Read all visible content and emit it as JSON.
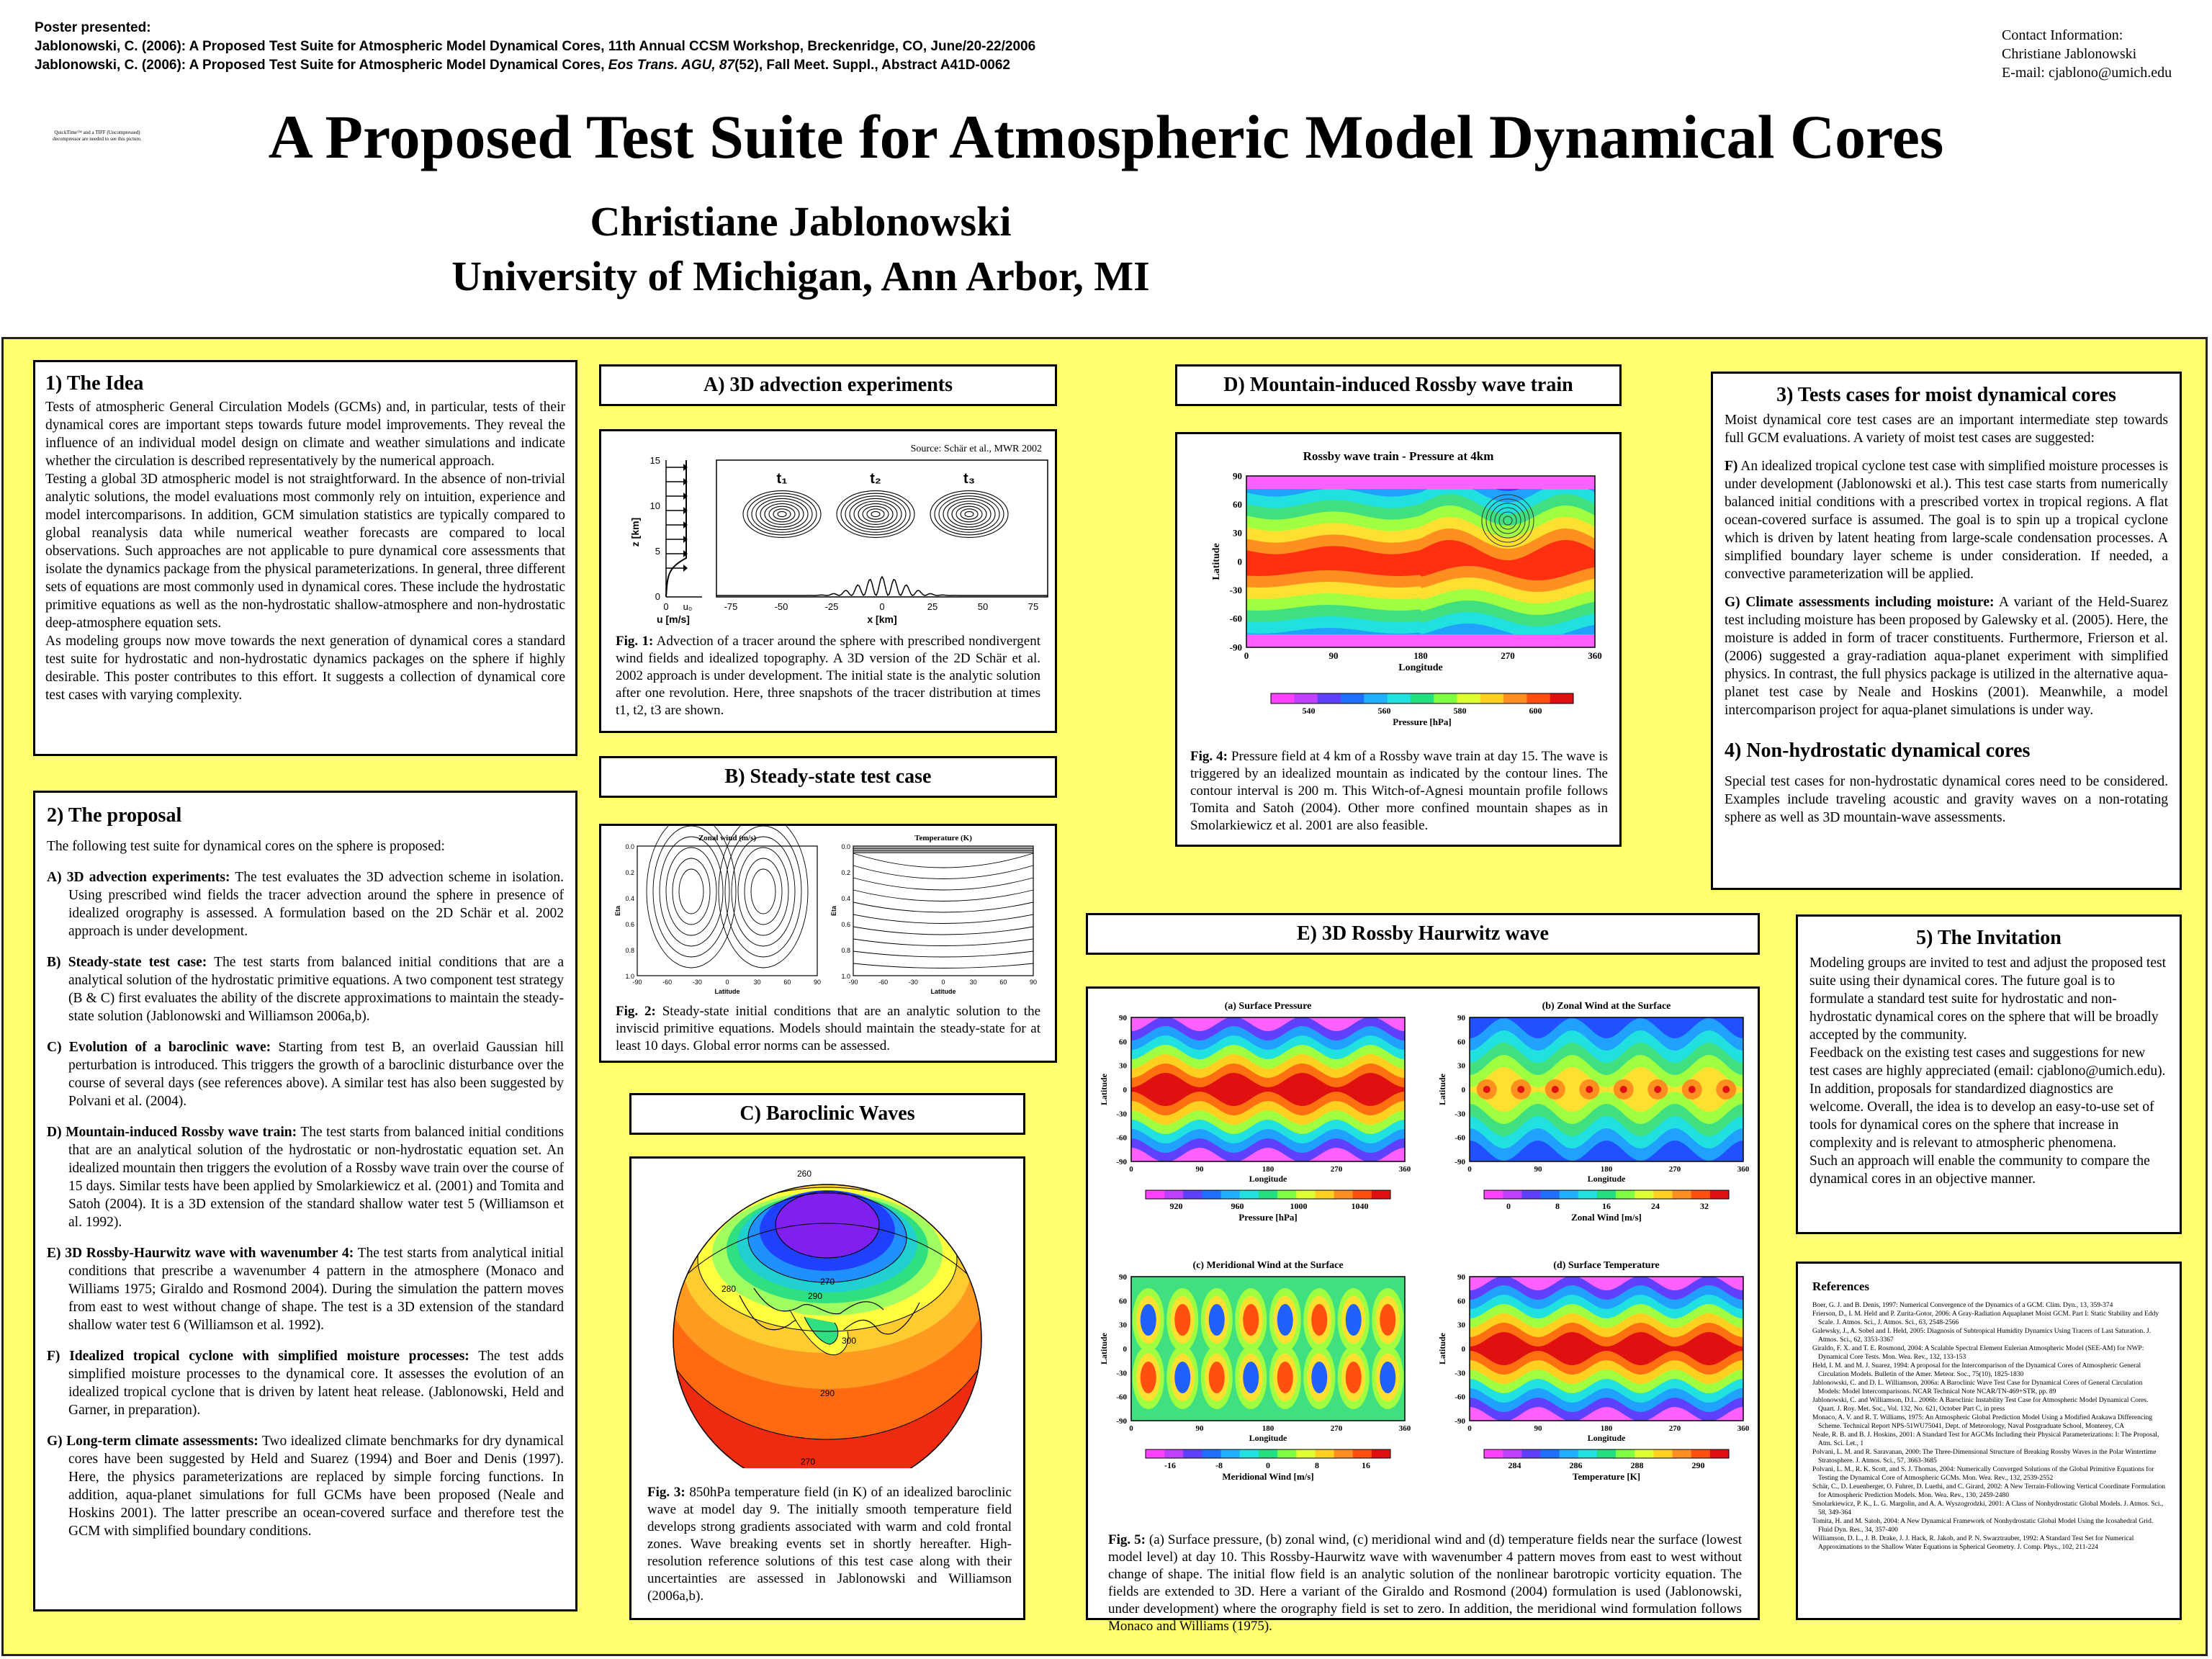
{
  "header": {
    "poster_presented": "Poster presented:",
    "citation1": "Jablonowski, C. (2006): A Proposed Test Suite for Atmospheric Model Dynamical Cores, 11th Annual CCSM Workshop, Breckenridge, CO, June/20-22/2006",
    "citation2_a": "Jablonowski, C. (2006): A Proposed Test Suite for Atmospheric Model Dynamical Cores, ",
    "citation2_b": "Eos Trans. AGU, 87",
    "citation2_c": "(52), Fall Meet. Suppl., Abstract A41D-0062",
    "contact_label": "Contact Information:",
    "contact_name": "Christiane Jablonowski",
    "contact_email": "E-mail: cjablono@umich.edu",
    "title": "A Proposed Test Suite for Atmospheric Model Dynamical Cores",
    "author": "Christiane  Jablonowski",
    "affiliation": "University of Michigan, Ann Arbor, MI"
  },
  "logo_text": "QuickTime™ and a TIFF (Uncompressed) decompressor are needed to see this picture.",
  "idea": {
    "title": "1) The Idea",
    "body": "Tests of atmospheric General Circulation Models (GCMs) and, in particular, tests of their dynamical cores are important steps towards future model improvements. They reveal the influence of an individual model design on climate and weather simulations and indicate whether the circulation is described representatively by the numerical approach.",
    "body2": "Testing a global 3D atmospheric model is not straightforward. In the absence of non-trivial analytic solutions, the model evaluations most commonly rely on intuition, experience and model intercomparisons. In addition, GCM simulation statistics are typically compared to global reanalysis data while numerical weather forecasts are compared to local observations. Such approaches are not applicable to pure dynamical core assessments that isolate the dynamics package from the physical parameterizations. In general, three different sets of equations are most commonly used in dynamical cores. These include the hydrostatic primitive equations as well as the non-hydrostatic shallow-atmosphere and non-hydrostatic deep-atmosphere equation sets.",
    "body3": "As modeling groups now move towards the next generation of dynamical cores a standard test suite for hydrostatic and non-hydrostatic dynamics packages on the sphere if highly desirable. This poster contributes to this effort. It suggests a collection of dynamical core test cases with varying complexity."
  },
  "proposal": {
    "title": "2)  The proposal",
    "intro": "The following test suite for dynamical cores on the sphere is proposed:",
    "items": [
      {
        "label": "A)  3D advection experiments:",
        "text": " The test evaluates the 3D advection scheme in isolation. Using prescribed wind fields the tracer advection around the sphere in presence of idealized orography is assessed. A formulation based on the 2D Schär et al. 2002 approach is under development."
      },
      {
        "label": "B)  Steady-state test case:",
        "text": " The test starts from balanced initial conditions that are a analytical solution of the hydrostatic primitive equations. A two component test strategy (B & C) first evaluates the ability of the discrete approximations to maintain the steady-state solution (Jablonowski and Williamson 2006a,b)."
      },
      {
        "label": "C)  Evolution of a baroclinic wave:",
        "text": " Starting from test B, an overlaid Gaussian hill perturbation is introduced. This triggers the growth of a baroclinic disturbance over the course of several days (see references  above). A similar test has also been suggested by Polvani et al. (2004)."
      },
      {
        "label": "D)  Mountain-induced Rossby wave train:",
        "text": " The test starts from balanced initial conditions that are an analytical solution of the hydrostatic or non-hydrostatic equation set. An idealized mountain then triggers  the evolution of a Rossby wave train over the course of 15 days. Similar tests have been applied by Smolarkiewicz et al. (2001) and Tomita and Satoh (2004). It is a 3D extension of the standard shallow water test 5 (Williamson et al. 1992)."
      },
      {
        "label": "E)  3D Rossby-Haurwitz wave with wavenumber 4:",
        "text": " The test starts from analytical initial conditions that prescribe a wavenumber 4 pattern in the atmosphere (Monaco and Williams 1975; Giraldo and Rosmond 2004). During the simulation the pattern moves from east to west without change of shape. The test is a 3D extension of the standard shallow water test 6 (Williamson et al. 1992)."
      },
      {
        "label": "F)  Idealized tropical cyclone with simplified moisture processes:",
        "text": " The test adds simplified moisture processes to the dynamical core. It assesses the evolution of an idealized tropical cyclone that is driven by latent heat release. (Jablonowski, Held and Garner, in preparation)."
      },
      {
        "label": "G)  Long-term climate assessments:",
        "text": "  Two idealized climate benchmarks for dry dynamical cores have been suggested by Held and Suarez (1994) and Boer and Denis (1997). Here, the physics parameterizations are replaced by simple forcing functions. In addition, aqua-planet simulations for full GCMs have been proposed (Neale and Hoskins 2001). The latter prescribe an ocean-covered surface and therefore test the GCM with simplified boundary conditions."
      }
    ]
  },
  "sectionA": {
    "title": "A)  3D advection experiments",
    "source": "Source: Schär et al., MWR 2002",
    "ylabel": "z [km]",
    "xlabel": "x [km]",
    "ulabel": "u [m/s]",
    "u0": "u₀",
    "zero": "0",
    "t1": "t₁",
    "t2": "t₂",
    "t3": "t₃",
    "yticks": [
      "15",
      "10",
      "5",
      "0"
    ],
    "xticks": [
      "-75",
      "-50",
      "-25",
      "0",
      "25",
      "50",
      "75"
    ],
    "cap_label": "Fig. 1:",
    "cap": " Advection of a tracer around the sphere with prescribed nondivergent wind fields and idealized topography. A 3D version of the 2D Schär et al. 2002 approach is under development. The initial state is the analytic solution after one revolution. Here, three snapshots of the tracer distribution at times t1, t2, t3 are shown."
  },
  "sectionB": {
    "title": "B)  Steady-state test case",
    "left_title": "Zonal wind (m/s)",
    "right_title": "Temperature (K)",
    "xlabel": "Latitude",
    "ylabel": "Eta",
    "yticks": [
      "0.0",
      "0.2",
      "0.4",
      "0.6",
      "0.8",
      "1.0"
    ],
    "xticks": [
      "-90",
      "-60",
      "-30",
      "0",
      "30",
      "60",
      "90"
    ],
    "cap_label": "Fig. 2:",
    "cap": " Steady-state initial conditions that are an analytic solution to the inviscid primitive equations. Models should maintain the steady-state for at least 10 days. Global error norms can be assessed."
  },
  "sectionC": {
    "title": "C)  Baroclinic Waves",
    "labels": [
      "260",
      "270",
      "280",
      "290",
      "300",
      "290",
      "270"
    ],
    "cap_label": "Fig. 3:",
    "cap": " 850hPa temperature field (in K) of an idealized baroclinic wave at model day 9.  The initially smooth temperature field develops strong gradients associated with warm and cold frontal zones. Wave breaking events set in shortly hereafter. High-resolution reference solutions of this test case along with their uncertainties are assessed in Jablonowski and Williamson (2006a,b)."
  },
  "sectionD": {
    "title": "D)  Mountain-induced Rossby wave train",
    "plot_title": "Rossby wave train - Pressure at 4km",
    "xlabel": "Longitude",
    "ylabel": "Latitude",
    "yticks": [
      "90",
      "60",
      "30",
      "0",
      "-30",
      "-60",
      "-90"
    ],
    "xticks": [
      "0",
      "90",
      "180",
      "270",
      "360"
    ],
    "cbar_ticks": [
      "540",
      "560",
      "580",
      "600"
    ],
    "cbar_label": "Pressure [hPa]",
    "cap_label": "Fig. 4:",
    "cap": " Pressure field at 4 km of a Rossby wave train at day 15. The wave is triggered by an idealized mountain as indicated by the contour lines. The contour interval is 200 m. This Witch-of-Agnesi mountain profile follows Tomita and Satoh (2004). Other more confined mountain shapes as in Smolarkiewicz et al. 2001 are also feasible."
  },
  "sectionE": {
    "title": "E)  3D Rossby Haurwitz wave",
    "panels": [
      {
        "title": "(a) Surface Pressure",
        "cbar_label": "Pressure [hPa]",
        "cbar_ticks": [
          "920",
          "960",
          "1000",
          "1040"
        ]
      },
      {
        "title": "(b) Zonal Wind at the Surface",
        "cbar_label": "Zonal Wind [m/s]",
        "cbar_ticks": [
          "0",
          "8",
          "16",
          "24",
          "32"
        ]
      },
      {
        "title": "(c) Meridional Wind at the Surface",
        "cbar_label": "Meridional Wind [m/s]",
        "cbar_ticks": [
          "-16",
          "-8",
          "0",
          "8",
          "16"
        ]
      },
      {
        "title": "(d) Surface Temperature",
        "cbar_label": "Temperature [K]",
        "cbar_ticks": [
          "284",
          "286",
          "288",
          "290"
        ]
      }
    ],
    "xlabel": "Longitude",
    "ylabel": "Latitude",
    "yticks": [
      "90",
      "60",
      "30",
      "0",
      "-30",
      "-60",
      "-90"
    ],
    "xticks": [
      "0",
      "90",
      "180",
      "270",
      "360"
    ],
    "cap_label": "Fig. 5:",
    "cap": " (a) Surface pressure, (b) zonal wind, (c) meridional wind and (d) temperature fields near the surface (lowest model level) at day 10. This Rossby-Haurwitz wave with wavenumber 4 pattern moves from east to west without change of shape. The initial flow field is an analytic solution of the nonlinear barotropic vorticity equation. The fields are extended to 3D. Here a variant of the Giraldo and Rosmond (2004) formulation is used (Jablonowski, under development) where the orography field is set to zero. In addition, the meridional wind formulation follows  Monaco and Williams (1975)."
  },
  "moist": {
    "title": "3)  Tests cases for moist dynamical cores",
    "intro": "Moist dynamical core test cases are an important intermediate step towards full GCM evaluations. A variety of moist test cases are suggested:",
    "f_label": "F)",
    "f_text": " An idealized tropical cyclone test case with simplified moisture processes is under development (Jablonowski et al.). This test case starts from numerically balanced initial conditions with a prescribed vortex in tropical regions. A flat ocean-covered surface is assumed. The goal is to spin up a tropical cyclone which is driven by latent heating from large-scale condensation processes. A simplified boundary layer scheme is under consideration. If needed, a convective parameterization will be applied.",
    "g_label": "G) Climate assessments including moisture:",
    "g_text": " A variant of the Held-Suarez test including moisture has been proposed by Galewsky et al. (2005). Here, the moisture is added in form of tracer constituents. Furthermore, Frierson et al. (2006) suggested a gray-radiation aqua-planet experiment with simplified physics. In contrast, the full physics package is utilized in the alternative aqua-planet test case by Neale and Hoskins (2001). Meanwhile, a model intercomparison project for aqua-planet simulations is under way.",
    "nh_title": "4)  Non-hydrostatic dynamical cores",
    "nh_text": "Special test cases for non-hydrostatic dynamical cores need to be considered. Examples include traveling acoustic and gravity waves on a non-rotating sphere as well as 3D mountain-wave assessments."
  },
  "invitation": {
    "title": "5)  The Invitation",
    "body": "Modeling groups are invited to test and adjust the proposed test suite using their dynamical cores. The future goal is to formulate a standard test suite for hydrostatic and non-hydrostatic dynamical cores on the sphere that will be broadly accepted by the community.",
    "body2": "Feedback on the existing test cases and suggestions for new test cases are highly appreciated (email: cjablono@umich.edu). In addition, proposals for standardized diagnostics are welcome. Overall, the idea is to develop an easy-to-use set of tools for dynamical cores on the sphere that increase in complexity and is relevant to atmospheric phenomena.",
    "body3": "Such an approach will enable the community to compare the dynamical cores in an objective manner."
  },
  "references": {
    "title": "References",
    "items": [
      "Boer, G. J. and B. Denis, 1997: Numerical Convergence of the Dynamics of a GCM. Clim. Dyn., 13, 359-374",
      "Frierson, D., I. M. Held and P. Zurita-Gotor, 2006: A Gray-Radiation Aquaplanet Moist GCM. Part I: Static Stability and Eddy Scale. J. Atmos. Sci., J. Atmos. Sci., 63, 2548-2566",
      "Galewsky, J., A. Sobel and I. Held, 2005: Diagnosis of Subtropical Humidity Dynamics Using Tracers of Last Saturation. J. Atmos. Sci., 62, 3353-3367",
      "Giraldo, F. X. and T. E. Rosmond, 2004: A Scalable Spectral Element Eulerian Atmospheric Model (SEE-AM) for NWP: Dynamical Core Tests. Mon. Wea. Rev., 132, 133-153",
      "Held, I. M. and M. J. Suarez, 1994: A proposal for the Intercomparison of the Dynamical Cores of Atmospheric General Circulation Models. Bulletin of the Amer. Meteor. Soc., 75(10), 1825-1830",
      "Jablonowski, C. and D. L. Williamson, 2006a: A Baroclinic Wave Test Case for Dynamical Cores of General Circulation Models: Model Intercomparisons. NCAR Technical Note NCAR/TN-469+STR, pp. 89",
      "Jablonowski, C. and Williamson, D.L. 2006b: A Baroclinic Instability Test Case for Atmospheric Model Dynamical Cores. Quart. J. Roy. Met. Soc., Vol. 132, No. 621, October Part C, in press",
      "Monaco, A. V. and R. T. Williams, 1975: An Atmospheric Global Prediction Model Using a Modified Arakawa Differencing Scheme. Technical Report NPS-51WU75041, Dept. of Meteorology, Naval Postgraduate School, Monterey, CA",
      "Neale, R. B. and B. J. Hoskins, 2001: A Standard Test for AGCMs Including their Physical Parameterizations: I: The Proposal, Atm. Sci. Let., 1",
      "Polvani, L. M. and R. Saravanan, 2000: The Three-Dimensional Structure of Breaking Rossby Waves in the Polar Wintertime Stratosphere. J. Atmos. Sci., 57, 3663-3685",
      "Polvani, L. M., R. K. Scott, and S. J. Thomas, 2004: Numerically Converged Solutions of the Global Primitive Equations for Testing the Dynamical Core of Atmospheric GCMs. Mon. Wea. Rev., 132, 2539-2552",
      "Schär, C., D. Leuenberger, O. Fuhrer, D. Luethi, and C. Girard, 2002: A New Terrain-Following Vertical Coordinate Formulation for Atmospheric Prediction Models. Mon. Wea. Rev., 130, 2459-2480",
      "Smolarkiewicz, P. K., L. G. Margolin, and A. A. Wyszogrodzki, 2001: A Class of Nonhydrostatic Global Models. J. Atmos. Sci., 58, 349-364",
      "Tomita, H. and M. Satoh, 2004: A New Dynamical Framework of Nonhydrostatic Global Model Using the Icosahedral Grid. Fluid Dyn. Res., 34, 357-400",
      "Williamson, D. L., J. B. Drake, J. J. Hack, R. Jakob, and P. N. Swarztrauber, 1992: A Standard Test Set for Numerical Approximations to the Shallow Water Equations in Spherical Geometry. J. Comp. Phys., 102, 211-224"
    ]
  },
  "colors": {
    "background": "#ffff70",
    "panel": "#ffffff",
    "border": "#000000"
  },
  "icons": [
    "contour-plot-image",
    "globe-image"
  ]
}
